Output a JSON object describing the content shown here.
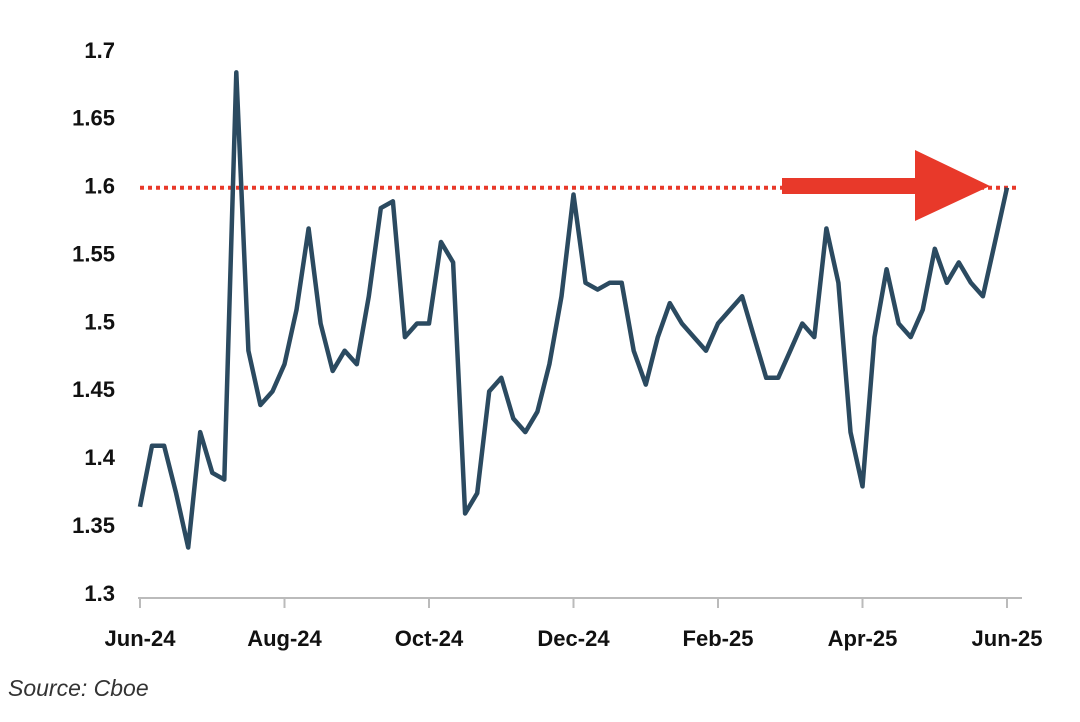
{
  "chart_data": {
    "type": "line",
    "source": "Source: Cboe",
    "categories": [
      "Jun-24",
      null,
      null,
      null,
      null,
      null,
      null,
      null,
      null,
      null,
      null,
      null,
      "Aug-24",
      null,
      null,
      null,
      null,
      null,
      null,
      null,
      null,
      null,
      null,
      null,
      "Oct-24",
      null,
      null,
      null,
      null,
      null,
      null,
      null,
      null,
      null,
      null,
      null,
      "Dec-24",
      null,
      null,
      null,
      null,
      null,
      null,
      null,
      null,
      null,
      null,
      null,
      "Feb-25",
      null,
      null,
      null,
      null,
      null,
      null,
      null,
      null,
      null,
      null,
      null,
      "Apr-25",
      null,
      null,
      null,
      null,
      null,
      null,
      null,
      null,
      null,
      null,
      null,
      "Jun-25"
    ],
    "values": [
      1.365,
      1.41,
      1.41,
      1.375,
      1.335,
      1.42,
      1.39,
      1.385,
      1.685,
      1.48,
      1.44,
      1.45,
      1.47,
      1.51,
      1.57,
      1.5,
      1.465,
      1.48,
      1.47,
      1.52,
      1.585,
      1.59,
      1.49,
      1.5,
      1.5,
      1.56,
      1.545,
      1.36,
      1.375,
      1.45,
      1.46,
      1.43,
      1.42,
      1.435,
      1.47,
      1.52,
      1.595,
      1.53,
      1.525,
      1.53,
      1.53,
      1.48,
      1.455,
      1.49,
      1.515,
      1.5,
      1.49,
      1.48,
      1.5,
      1.51,
      1.52,
      1.49,
      1.46,
      1.46,
      1.48,
      1.5,
      1.49,
      1.57,
      1.53,
      1.42,
      1.38,
      1.49,
      1.54,
      1.5,
      1.49,
      1.51,
      1.555,
      1.53,
      1.545,
      1.53,
      1.52,
      1.56,
      1.6
    ],
    "color": "#2b4a60",
    "ylim": [
      1.3,
      1.7
    ],
    "yticks": [
      1.3,
      1.35,
      1.4,
      1.45,
      1.5,
      1.55,
      1.6,
      1.65,
      1.7
    ],
    "reference_line": {
      "value": 1.6,
      "color": "#e8392a"
    }
  }
}
